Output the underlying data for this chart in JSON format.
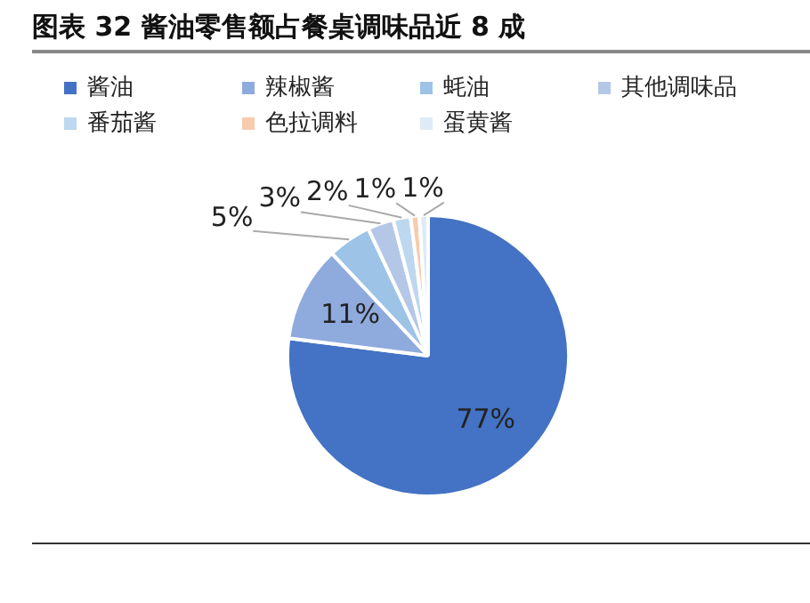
{
  "chart_data": {
    "type": "pie",
    "title": "图表 32 酱油零售额占餐桌调味品近 8 成",
    "categories": [
      "酱油",
      "辣椒酱",
      "蚝油",
      "其他调味品",
      "番茄酱",
      "色拉调料",
      "蛋黄酱"
    ],
    "values": [
      77,
      11,
      5,
      3,
      2,
      1,
      1
    ],
    "value_labels": [
      "77%",
      "11%",
      "5%",
      "3%",
      "2%",
      "1%",
      "1%"
    ],
    "colors": [
      "#4472c4",
      "#8faadc",
      "#9dc3e6",
      "#b4c7e7",
      "#bdd7ee",
      "#f8cbad",
      "#deebf7"
    ],
    "legend": "top"
  }
}
